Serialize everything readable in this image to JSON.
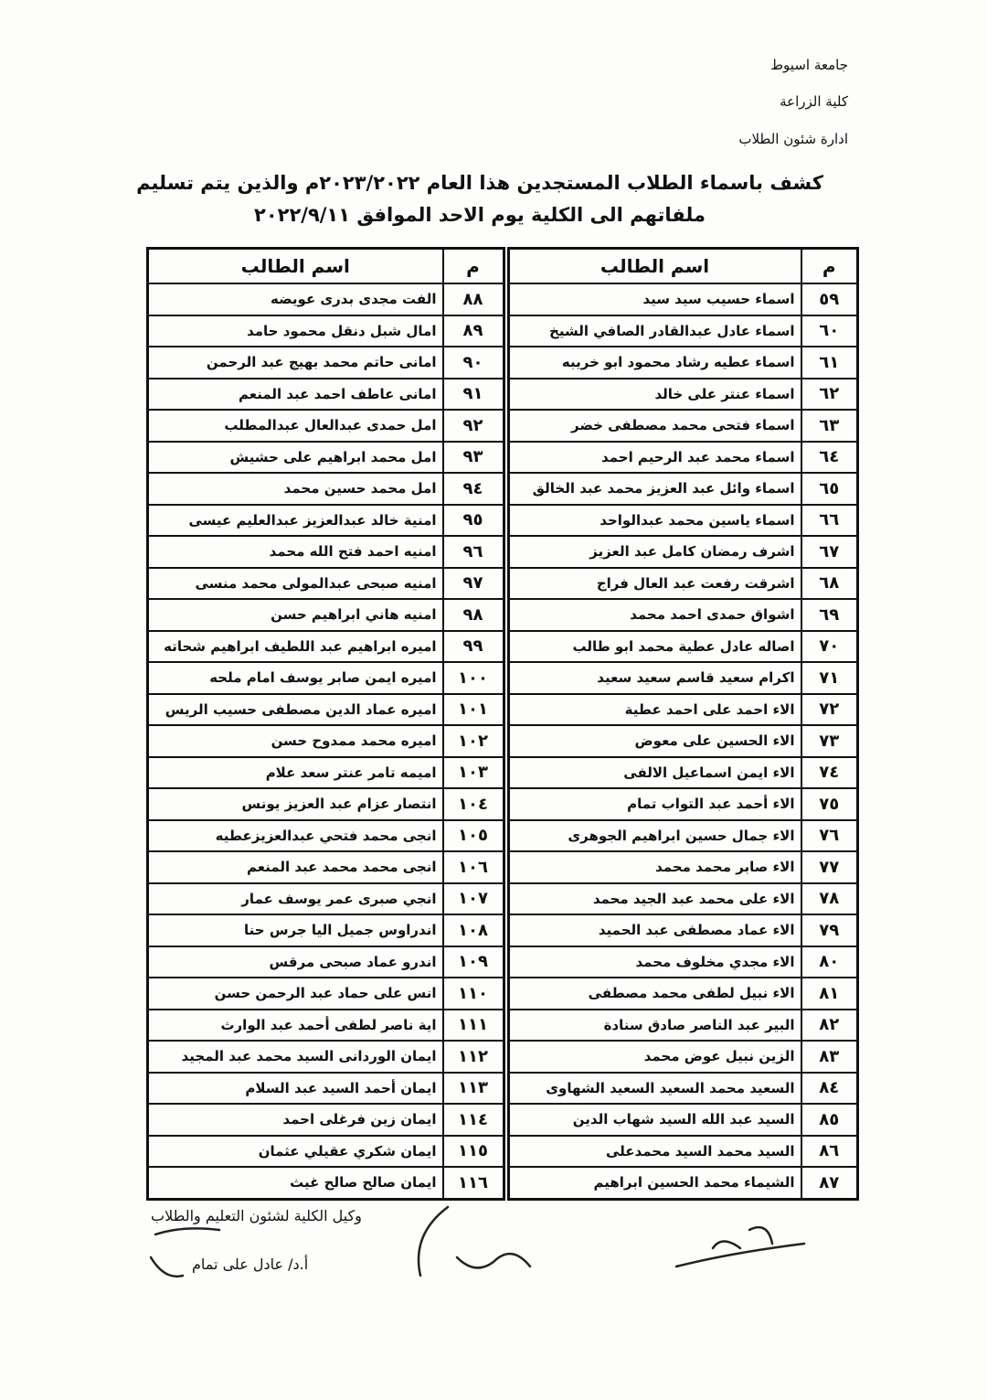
{
  "header": {
    "university": "جامعة اسيوط",
    "faculty": "كلية الزراعة",
    "department": "ادارة شئون الطلاب"
  },
  "title": [
    "كشف باسماء الطلاب المستجدين هذا العام ٢٠٢٣/٢٠٢٢م والذين يتم تسليم",
    "ملفاتهم الى الكلية  يوم الاحد الموافق ٢٠٢٢/٩/١١"
  ],
  "table": {
    "header": [
      "م",
      "اسم الطالب",
      "م",
      "اسم الطالب"
    ],
    "rows": [
      [
        "٥٩",
        "اسماء حسيب سيد سيد",
        "٨٨",
        "الفت مجدى بدرى عويضه"
      ],
      [
        "٦٠",
        "اسماء عادل عبدالقادر الصافي الشيخ",
        "٨٩",
        "امال شبل دنقل محمود حامد"
      ],
      [
        "٦١",
        "اسماء عطيه رشاد محمود ابو خريبه",
        "٩٠",
        "امانى حاتم محمد بهيج عبد الرحمن"
      ],
      [
        "٦٢",
        "اسماء عنتر على خالد",
        "٩١",
        "امانى عاطف احمد عبد المنعم"
      ],
      [
        "٦٣",
        "اسماء فتحى محمد مصطفى خضر",
        "٩٢",
        "امل حمدى عبدالعال عبدالمطلب"
      ],
      [
        "٦٤",
        "اسماء محمد عبد الرحيم احمد",
        "٩٣",
        "امل محمد ابراهيم على حشيش"
      ],
      [
        "٦٥",
        "اسماء وائل عبد العزيز محمد عبد الخالق",
        "٩٤",
        "امل محمد حسين محمد"
      ],
      [
        "٦٦",
        "اسماء ياسين محمد عبدالواحد",
        "٩٥",
        "امنية خالد عبدالعزيز عبدالعليم عيسى"
      ],
      [
        "٦٧",
        "اشرف رمضان كامل عبد العزيز",
        "٩٦",
        "امنيه احمد فتح الله محمد"
      ],
      [
        "٦٨",
        "اشرقت رفعت عبد العال فراج",
        "٩٧",
        "امنيه صبحى عبدالمولى محمد منسى"
      ],
      [
        "٦٩",
        "اشواق حمدى احمد محمد",
        "٩٨",
        "امنيه هاني ابراهيم حسن"
      ],
      [
        "٧٠",
        "اصاله عادل عطية محمد ابو طالب",
        "٩٩",
        "اميره ابراهيم عبد اللطيف ابراهيم شحاته"
      ],
      [
        "٧١",
        "اكرام سعيد قاسم سعيد سعيد",
        "١٠٠",
        "اميره ايمن صابر يوسف امام ملحه"
      ],
      [
        "٧٢",
        "الاء احمد على احمد عطية",
        "١٠١",
        "اميره عماد الدين مصطفى حسيب الريس"
      ],
      [
        "٧٣",
        "الاء الحسين على معوض",
        "١٠٢",
        "اميره محمد ممدوح حسن"
      ],
      [
        "٧٤",
        "الاء ايمن اسماعيل الالفى",
        "١٠٣",
        "اميمه تامر عنتر سعد علام"
      ],
      [
        "٧٥",
        "الاء أحمد عبد التواب تمام",
        "١٠٤",
        "انتصار عزام عبد العزيز يونس"
      ],
      [
        "٧٦",
        "الاء جمال حسين ابراهيم الجوهرى",
        "١٠٥",
        "انجى محمد فتحي عبدالعزيزعطيه"
      ],
      [
        "٧٧",
        "الاء صابر محمد محمد",
        "١٠٦",
        "انجى محمد محمد عبد المنعم"
      ],
      [
        "٧٨",
        "الاء على محمد عبد الجيد محمد",
        "١٠٧",
        "انجي صبرى عمر يوسف عمار"
      ],
      [
        "٧٩",
        "الاء عماد مصطفى عبد الحميد",
        "١٠٨",
        "اندراوس جميل اليا جرس حنا"
      ],
      [
        "٨٠",
        "الاء مجدي مخلوف محمد",
        "١٠٩",
        "اندرو عماد صبحى مرقس"
      ],
      [
        "٨١",
        "الاء نبيل لطفى محمد مصطفى",
        "١١٠",
        "انس على حماد عبد الرحمن حسن"
      ],
      [
        "٨٢",
        "البير عبد الناصر صادق سنادة",
        "١١١",
        "اية ناصر لطفى أحمد عبد الوارث"
      ],
      [
        "٨٣",
        "الزين نبيل عوض محمد",
        "١١٢",
        "ايمان الوردانى السيد محمد عبد المجيد"
      ],
      [
        "٨٤",
        "السعيد محمد السعيد السعيد الشهاوى",
        "١١٣",
        "ايمان أحمد السيد عبد السلام"
      ],
      [
        "٨٥",
        "السيد عبد الله السيد شهاب الدين",
        "١١٤",
        "ايمان زين فرغلى احمد"
      ],
      [
        "٨٦",
        "السيد محمد السيد محمدعلى",
        "١١٥",
        "ايمان شكري عقيلي عثمان"
      ],
      [
        "٨٧",
        "الشيماء محمد الحسين ابراهيم",
        "١١٦",
        "ايمان صالح صالح غيث"
      ]
    ]
  },
  "footer": {
    "signatory_title": "وكيل الكلية لشئون التعليم والطلاب",
    "signatory_name": "أ.د/ عادل على تمام"
  }
}
